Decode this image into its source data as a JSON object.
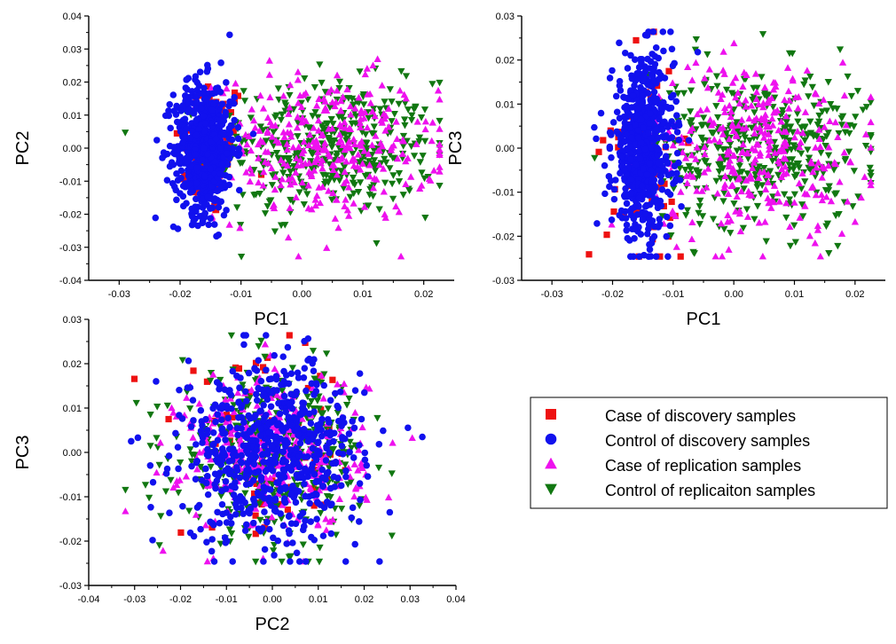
{
  "legend": {
    "placement": "right-middle",
    "entries": [
      {
        "label": "Case of discovery samples",
        "color": "#ee1111",
        "marker": "square"
      },
      {
        "label": "Control of discovery samples",
        "color": "#1111ee",
        "marker": "circle"
      },
      {
        "label": "Case of replication samples",
        "color": "#ee11ee",
        "marker": "triangle-up"
      },
      {
        "label": "Control of replicaiton samples",
        "color": "#117711",
        "marker": "triangle-down"
      }
    ]
  },
  "chart_data": [
    {
      "type": "scatter",
      "title": "",
      "xlabel": "PC1",
      "ylabel": "PC2",
      "xlim": [
        -0.035,
        0.025
      ],
      "ylim": [
        -0.04,
        0.04
      ],
      "xticks": [
        "-0.03",
        "-0.02",
        "-0.01",
        "0.00",
        "0.01",
        "0.02"
      ],
      "yticks": [
        "-0.04",
        "-0.03",
        "-0.02",
        "-0.01",
        "0.00",
        "0.01",
        "0.02",
        "0.03",
        "0.04"
      ],
      "series": [
        {
          "name": "Case of discovery samples",
          "points": 70,
          "x_mean": -0.015,
          "x_sd": 0.003,
          "y_mean": 0.0,
          "y_sd": 0.011
        },
        {
          "name": "Control of discovery samples",
          "points": 650,
          "x_mean": -0.016,
          "x_sd": 0.0025,
          "y_mean": 0.0,
          "y_sd": 0.01
        },
        {
          "name": "Case of replication samples",
          "points": 320,
          "x_mean": 0.004,
          "x_sd": 0.009,
          "y_mean": 0.0,
          "y_sd": 0.011
        },
        {
          "name": "Control of replicaiton samples",
          "points": 420,
          "x_mean": 0.004,
          "x_sd": 0.009,
          "y_mean": 0.0,
          "y_sd": 0.01
        }
      ]
    },
    {
      "type": "scatter",
      "title": "",
      "xlabel": "PC1",
      "ylabel": "PC3",
      "xlim": [
        -0.035,
        0.025
      ],
      "ylim": [
        -0.03,
        0.03
      ],
      "xticks": [
        "-0.03",
        "-0.02",
        "-0.01",
        "0.00",
        "0.01",
        "0.02"
      ],
      "yticks": [
        "-0.03",
        "-0.02",
        "-0.01",
        "0.00",
        "0.01",
        "0.02",
        "0.03"
      ],
      "series": [
        {
          "name": "Case of discovery samples",
          "points": 70,
          "x_mean": -0.015,
          "x_sd": 0.003,
          "y_mean": -0.002,
          "y_sd": 0.012
        },
        {
          "name": "Control of discovery samples",
          "points": 650,
          "x_mean": -0.015,
          "x_sd": 0.0025,
          "y_mean": 0.0,
          "y_sd": 0.01
        },
        {
          "name": "Case of replication samples",
          "points": 320,
          "x_mean": 0.004,
          "x_sd": 0.009,
          "y_mean": 0.0,
          "y_sd": 0.01
        },
        {
          "name": "Control of replicaiton samples",
          "points": 420,
          "x_mean": 0.004,
          "x_sd": 0.009,
          "y_mean": 0.0,
          "y_sd": 0.009
        }
      ]
    },
    {
      "type": "scatter",
      "title": "",
      "xlabel": "PC2",
      "ylabel": "PC3",
      "xlim": [
        -0.04,
        0.04
      ],
      "ylim": [
        -0.03,
        0.03
      ],
      "xticks": [
        "-0.04",
        "-0.03",
        "-0.02",
        "-0.01",
        "0.00",
        "0.01",
        "0.02",
        "0.03",
        "0.04"
      ],
      "yticks": [
        "-0.03",
        "-0.02",
        "-0.01",
        "0.00",
        "0.01",
        "0.02",
        "0.03"
      ],
      "series": [
        {
          "name": "Case of discovery samples",
          "points": 70,
          "x_mean": 0.0,
          "x_sd": 0.01,
          "y_mean": 0.0,
          "y_sd": 0.01
        },
        {
          "name": "Control of discovery samples",
          "points": 650,
          "x_mean": 0.0,
          "x_sd": 0.01,
          "y_mean": 0.0,
          "y_sd": 0.01
        },
        {
          "name": "Case of replication samples",
          "points": 320,
          "x_mean": 0.0,
          "x_sd": 0.01,
          "y_mean": 0.0,
          "y_sd": 0.009
        },
        {
          "name": "Control of replicaiton samples",
          "points": 420,
          "x_mean": 0.0,
          "x_sd": 0.01,
          "y_mean": 0.0,
          "y_sd": 0.009
        }
      ]
    }
  ]
}
